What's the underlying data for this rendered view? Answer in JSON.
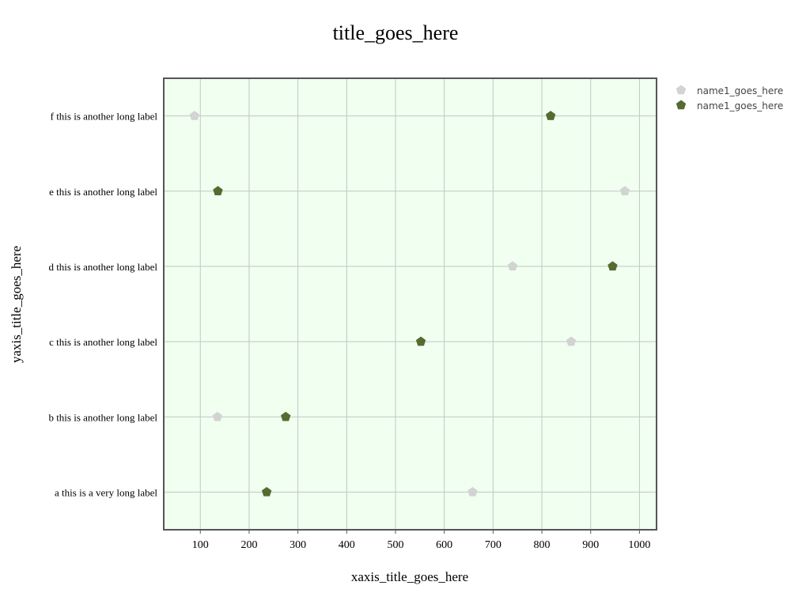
{
  "chart_data": {
    "type": "scatter",
    "title": "title_goes_here",
    "xlabel": "xaxis_title_goes_here",
    "ylabel": "yaxis_title_goes_here",
    "categories": [
      "a this is a very long label",
      "b this is another long label",
      "c this is another long label",
      "d this is another long label",
      "e this is another long label",
      "f this is another long label"
    ],
    "xlim": [
      25,
      1035
    ],
    "xticks": [
      100,
      200,
      300,
      400,
      500,
      600,
      700,
      800,
      900,
      1000
    ],
    "grid": true,
    "legend_position": "top-right",
    "marker": "pentagon",
    "colors": {
      "plot_bg": "#f0fff0",
      "grid": "#bfc8c0",
      "frame": "#555555"
    },
    "series": [
      {
        "name": "name1_goes_here",
        "color": "#d3d3d3",
        "values": [
          658,
          135,
          860,
          740,
          970,
          88
        ]
      },
      {
        "name": "name1_goes_here",
        "color": "#556b2f",
        "values": [
          236,
          275,
          552,
          945,
          136,
          818
        ]
      }
    ]
  }
}
